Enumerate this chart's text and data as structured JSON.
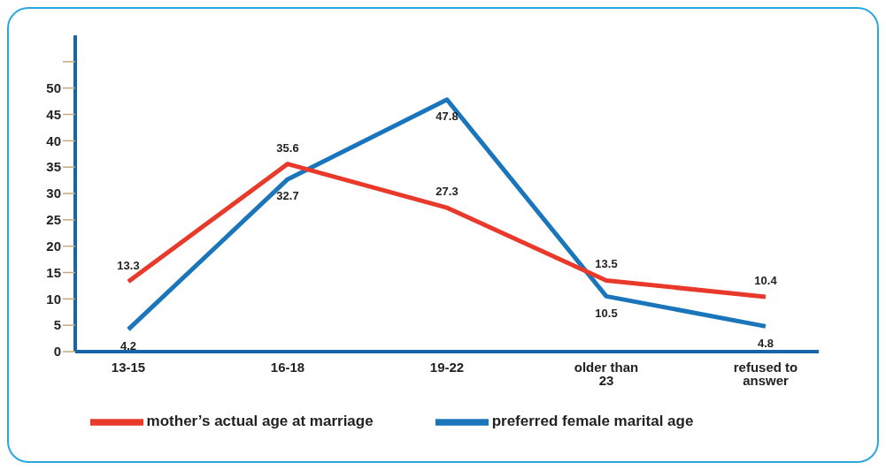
{
  "chart_data": {
    "type": "line",
    "categories": [
      "13-15",
      "16-18",
      "19-22",
      "older than 23",
      "refused to answer"
    ],
    "series": [
      {
        "name": "preferred female marital age",
        "color": "#1a75bb",
        "values": [
          4.2,
          32.7,
          47.8,
          10.5,
          4.8
        ]
      },
      {
        "name": "mother’s actual age at marriage",
        "color": "#e8392a",
        "values": [
          13.3,
          35.6,
          27.3,
          13.5,
          10.4
        ]
      }
    ],
    "ylim": [
      0,
      60
    ],
    "yticks": [
      0,
      5,
      10,
      15,
      20,
      25,
      30,
      35,
      40,
      45,
      50,
      {
        "value": 55,
        "label": null
      }
    ],
    "grid": false,
    "legend": "bottom",
    "marker": "none",
    "line_style": "solid",
    "data_labels": true
  }
}
